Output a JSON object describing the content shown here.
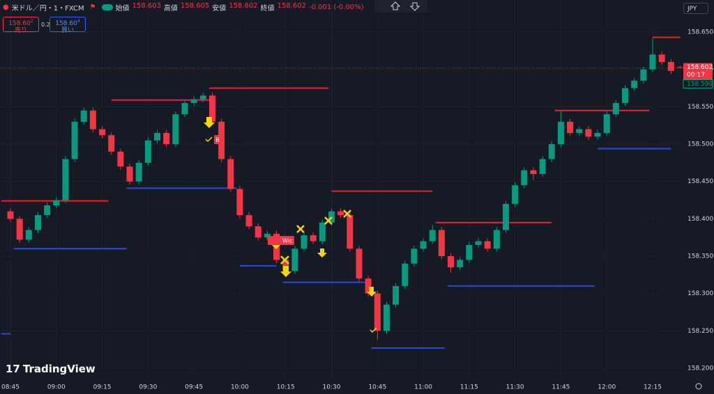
{
  "header": {
    "symbol": "米ドル／円・1・FXCM",
    "ohlc": [
      {
        "label": "始値",
        "value": "158.603"
      },
      {
        "label": "高値",
        "value": "158.605"
      },
      {
        "label": "安値",
        "value": "158.602"
      },
      {
        "label": "終値",
        "value": "158.602"
      }
    ],
    "change": "-0.001 (-0.00%)"
  },
  "trade": {
    "sell_price": "158.60",
    "sell_sup": "2",
    "sell_label": "売り",
    "spread": "0.2",
    "buy_price": "158.60",
    "buy_sup": "4",
    "buy_label": "買い"
  },
  "currency": "JPY",
  "logo": "TradingView",
  "chip_b": "B",
  "chip_wick": "Wic",
  "chart_data": {
    "type": "candlestick",
    "up_color": "#089981",
    "down_color": "#f23645",
    "ylim": [
      158.185,
      158.693
    ],
    "yticks": [
      {
        "value": 158.2,
        "label": "158.200"
      },
      {
        "value": 158.25,
        "label": "158.250"
      },
      {
        "value": 158.3,
        "label": "158.300"
      },
      {
        "value": 158.35,
        "label": "158.350"
      },
      {
        "value": 158.4,
        "label": "158.400"
      },
      {
        "value": 158.45,
        "label": "158.450"
      },
      {
        "value": 158.5,
        "label": "158.500"
      },
      {
        "value": 158.55,
        "label": "158.550"
      },
      {
        "value": 158.6,
        "label": "158.600"
      },
      {
        "value": 158.65,
        "label": "158.650"
      }
    ],
    "xticks": [
      "08:45",
      "09:00",
      "09:15",
      "09:30",
      "09:45",
      "10:00",
      "10:15",
      "10:30",
      "10:45",
      "11:00",
      "11:15",
      "11:30",
      "11:45",
      "12:00",
      "12:15"
    ],
    "last_price": {
      "value": 158.602,
      "label": "158.602"
    },
    "countdown": "00:17",
    "bid_price": {
      "value": 158.59,
      "label": "158.590"
    },
    "levels": [
      {
        "price": 158.424,
        "start": "08:42",
        "end": "09:17",
        "color": "#e8232b"
      },
      {
        "price": 158.559,
        "start": "09:18",
        "end": "09:50",
        "color": "#e8232b"
      },
      {
        "price": 158.575,
        "start": "09:50",
        "end": "10:29",
        "color": "#e8232b"
      },
      {
        "price": 158.437,
        "start": "10:30",
        "end": "11:03",
        "color": "#e8232b"
      },
      {
        "price": 158.395,
        "start": "11:04",
        "end": "11:42",
        "color": "#e8232b"
      },
      {
        "price": 158.545,
        "start": "11:43",
        "end": "12:14",
        "color": "#e8232b"
      },
      {
        "price": 158.643,
        "start": "12:15",
        "end": "12:24",
        "color": "#e8232b"
      },
      {
        "price": 158.246,
        "start": "08:42",
        "end": "08:45",
        "color": "#2a4bd7"
      },
      {
        "price": 158.36,
        "start": "08:46",
        "end": "09:23",
        "color": "#2a4bd7"
      },
      {
        "price": 158.441,
        "start": "09:23",
        "end": "09:59",
        "color": "#2a4bd7"
      },
      {
        "price": 158.337,
        "start": "10:00",
        "end": "10:12",
        "color": "#2a4bd7"
      },
      {
        "price": 158.315,
        "start": "10:14",
        "end": "10:42",
        "color": "#2a4bd7"
      },
      {
        "price": 158.227,
        "start": "10:43",
        "end": "11:07",
        "color": "#2a4bd7"
      },
      {
        "price": 158.31,
        "start": "11:08",
        "end": "11:56",
        "color": "#2a4bd7"
      },
      {
        "price": 158.494,
        "start": "11:57",
        "end": "12:21",
        "color": "#2a4bd7"
      }
    ],
    "candles": [
      {
        "t": "08:45",
        "o": 158.41,
        "h": 158.414,
        "l": 158.396,
        "c": 158.4
      },
      {
        "t": "08:48",
        "o": 158.4,
        "h": 158.404,
        "l": 158.368,
        "c": 158.372
      },
      {
        "t": "08:51",
        "o": 158.372,
        "h": 158.389,
        "l": 158.368,
        "c": 158.385
      },
      {
        "t": "08:54",
        "o": 158.385,
        "h": 158.409,
        "l": 158.381,
        "c": 158.405
      },
      {
        "t": "08:57",
        "o": 158.405,
        "h": 158.422,
        "l": 158.401,
        "c": 158.418
      },
      {
        "t": "09:00",
        "o": 158.418,
        "h": 158.429,
        "l": 158.414,
        "c": 158.425
      },
      {
        "t": "09:03",
        "o": 158.425,
        "h": 158.484,
        "l": 158.421,
        "c": 158.48
      },
      {
        "t": "09:06",
        "o": 158.48,
        "h": 158.534,
        "l": 158.476,
        "c": 158.53
      },
      {
        "t": "09:09",
        "o": 158.53,
        "h": 158.549,
        "l": 158.526,
        "c": 158.545
      },
      {
        "t": "09:12",
        "o": 158.545,
        "h": 158.549,
        "l": 158.516,
        "c": 158.52
      },
      {
        "t": "09:15",
        "o": 158.52,
        "h": 158.524,
        "l": 158.508,
        "c": 158.512
      },
      {
        "t": "09:18",
        "o": 158.512,
        "h": 158.516,
        "l": 158.486,
        "c": 158.49
      },
      {
        "t": "09:21",
        "o": 158.49,
        "h": 158.494,
        "l": 158.466,
        "c": 158.47
      },
      {
        "t": "09:24",
        "o": 158.47,
        "h": 158.474,
        "l": 158.446,
        "c": 158.45
      },
      {
        "t": "09:27",
        "o": 158.45,
        "h": 158.479,
        "l": 158.446,
        "c": 158.475
      },
      {
        "t": "09:30",
        "o": 158.475,
        "h": 158.509,
        "l": 158.471,
        "c": 158.505
      },
      {
        "t": "09:33",
        "o": 158.505,
        "h": 158.519,
        "l": 158.501,
        "c": 158.515
      },
      {
        "t": "09:36",
        "o": 158.515,
        "h": 158.519,
        "l": 158.496,
        "c": 158.5
      },
      {
        "t": "09:39",
        "o": 158.5,
        "h": 158.544,
        "l": 158.496,
        "c": 158.54
      },
      {
        "t": "09:42",
        "o": 158.54,
        "h": 158.559,
        "l": 158.536,
        "c": 158.555
      },
      {
        "t": "09:45",
        "o": 158.555,
        "h": 158.564,
        "l": 158.551,
        "c": 158.56
      },
      {
        "t": "09:48",
        "o": 158.56,
        "h": 158.569,
        "l": 158.556,
        "c": 158.565
      },
      {
        "t": "09:51",
        "o": 158.565,
        "h": 158.569,
        "l": 158.526,
        "c": 158.53
      },
      {
        "t": "09:54",
        "o": 158.53,
        "h": 158.534,
        "l": 158.476,
        "c": 158.48
      },
      {
        "t": "09:57",
        "o": 158.48,
        "h": 158.484,
        "l": 158.436,
        "c": 158.44
      },
      {
        "t": "10:00",
        "o": 158.44,
        "h": 158.444,
        "l": 158.401,
        "c": 158.405
      },
      {
        "t": "10:03",
        "o": 158.405,
        "h": 158.409,
        "l": 158.386,
        "c": 158.39
      },
      {
        "t": "10:06",
        "o": 158.39,
        "h": 158.394,
        "l": 158.371,
        "c": 158.375
      },
      {
        "t": "10:09",
        "o": 158.375,
        "h": 158.384,
        "l": 158.371,
        "c": 158.38
      },
      {
        "t": "10:12",
        "o": 158.38,
        "h": 158.384,
        "l": 158.341,
        "c": 158.345
      },
      {
        "t": "10:15",
        "o": 158.345,
        "h": 158.349,
        "l": 158.326,
        "c": 158.33
      },
      {
        "t": "10:18",
        "o": 158.33,
        "h": 158.364,
        "l": 158.326,
        "c": 158.36
      },
      {
        "t": "10:21",
        "o": 158.36,
        "h": 158.382,
        "l": 158.356,
        "c": 158.378
      },
      {
        "t": "10:24",
        "o": 158.378,
        "h": 158.382,
        "l": 158.366,
        "c": 158.37
      },
      {
        "t": "10:27",
        "o": 158.37,
        "h": 158.399,
        "l": 158.366,
        "c": 158.395
      },
      {
        "t": "10:30",
        "o": 158.395,
        "h": 158.414,
        "l": 158.391,
        "c": 158.41
      },
      {
        "t": "10:33",
        "o": 158.41,
        "h": 158.414,
        "l": 158.401,
        "c": 158.405
      },
      {
        "t": "10:36",
        "o": 158.405,
        "h": 158.409,
        "l": 158.356,
        "c": 158.36
      },
      {
        "t": "10:39",
        "o": 158.36,
        "h": 158.364,
        "l": 158.316,
        "c": 158.32
      },
      {
        "t": "10:42",
        "o": 158.32,
        "h": 158.324,
        "l": 158.296,
        "c": 158.3
      },
      {
        "t": "10:45",
        "o": 158.3,
        "h": 158.304,
        "l": 158.238,
        "c": 158.25
      },
      {
        "t": "10:48",
        "o": 158.25,
        "h": 158.289,
        "l": 158.246,
        "c": 158.285
      },
      {
        "t": "10:51",
        "o": 158.285,
        "h": 158.314,
        "l": 158.281,
        "c": 158.31
      },
      {
        "t": "10:54",
        "o": 158.31,
        "h": 158.344,
        "l": 158.306,
        "c": 158.34
      },
      {
        "t": "10:57",
        "o": 158.34,
        "h": 158.364,
        "l": 158.336,
        "c": 158.36
      },
      {
        "t": "11:00",
        "o": 158.36,
        "h": 158.374,
        "l": 158.356,
        "c": 158.37
      },
      {
        "t": "11:03",
        "o": 158.37,
        "h": 158.392,
        "l": 158.366,
        "c": 158.385
      },
      {
        "t": "11:06",
        "o": 158.385,
        "h": 158.389,
        "l": 158.346,
        "c": 158.35
      },
      {
        "t": "11:09",
        "o": 158.35,
        "h": 158.354,
        "l": 158.328,
        "c": 158.335
      },
      {
        "t": "11:12",
        "o": 158.335,
        "h": 158.349,
        "l": 158.331,
        "c": 158.345
      },
      {
        "t": "11:15",
        "o": 158.345,
        "h": 158.369,
        "l": 158.341,
        "c": 158.365
      },
      {
        "t": "11:18",
        "o": 158.365,
        "h": 158.374,
        "l": 158.361,
        "c": 158.37
      },
      {
        "t": "11:21",
        "o": 158.37,
        "h": 158.374,
        "l": 158.356,
        "c": 158.36
      },
      {
        "t": "11:24",
        "o": 158.36,
        "h": 158.389,
        "l": 158.356,
        "c": 158.385
      },
      {
        "t": "11:27",
        "o": 158.385,
        "h": 158.424,
        "l": 158.381,
        "c": 158.42
      },
      {
        "t": "11:30",
        "o": 158.42,
        "h": 158.449,
        "l": 158.416,
        "c": 158.445
      },
      {
        "t": "11:33",
        "o": 158.445,
        "h": 158.469,
        "l": 158.441,
        "c": 158.465
      },
      {
        "t": "11:36",
        "o": 158.465,
        "h": 158.469,
        "l": 158.452,
        "c": 158.46
      },
      {
        "t": "11:39",
        "o": 158.46,
        "h": 158.484,
        "l": 158.456,
        "c": 158.48
      },
      {
        "t": "11:42",
        "o": 158.48,
        "h": 158.504,
        "l": 158.476,
        "c": 158.5
      },
      {
        "t": "11:45",
        "o": 158.5,
        "h": 158.544,
        "l": 158.496,
        "c": 158.53
      },
      {
        "t": "11:48",
        "o": 158.53,
        "h": 158.534,
        "l": 158.511,
        "c": 158.515
      },
      {
        "t": "11:51",
        "o": 158.515,
        "h": 158.524,
        "l": 158.511,
        "c": 158.52
      },
      {
        "t": "11:54",
        "o": 158.52,
        "h": 158.524,
        "l": 158.506,
        "c": 158.51
      },
      {
        "t": "11:57",
        "o": 158.51,
        "h": 158.519,
        "l": 158.506,
        "c": 158.515
      },
      {
        "t": "12:00",
        "o": 158.515,
        "h": 158.544,
        "l": 158.511,
        "c": 158.54
      },
      {
        "t": "12:03",
        "o": 158.54,
        "h": 158.559,
        "l": 158.536,
        "c": 158.555
      },
      {
        "t": "12:06",
        "o": 158.555,
        "h": 158.579,
        "l": 158.551,
        "c": 158.575
      },
      {
        "t": "12:09",
        "o": 158.575,
        "h": 158.589,
        "l": 158.571,
        "c": 158.585
      },
      {
        "t": "12:12",
        "o": 158.585,
        "h": 158.604,
        "l": 158.581,
        "c": 158.6
      },
      {
        "t": "12:15",
        "o": 158.6,
        "h": 158.642,
        "l": 158.596,
        "c": 158.62
      },
      {
        "t": "12:18",
        "o": 158.62,
        "h": 158.624,
        "l": 158.606,
        "c": 158.61
      },
      {
        "t": "12:21",
        "o": 158.61,
        "h": 158.614,
        "l": 158.594,
        "c": 158.598
      },
      {
        "t": "12:24",
        "o": 158.603,
        "h": 158.605,
        "l": 158.602,
        "c": 158.602
      }
    ]
  }
}
